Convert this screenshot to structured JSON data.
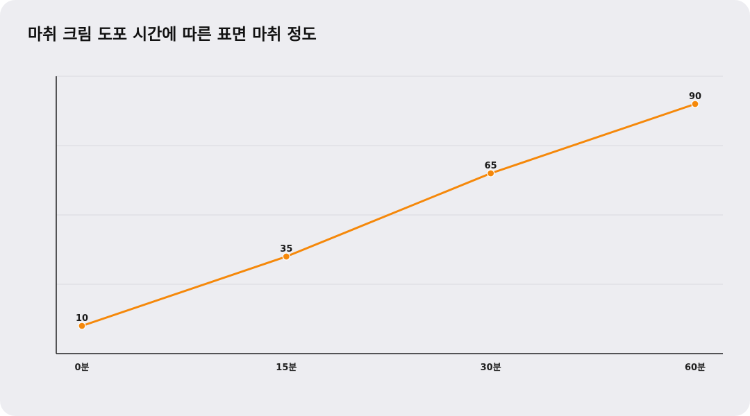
{
  "chart_data": {
    "type": "line",
    "title": "마취 크림 도포 시간에 따른 표면 마취 정도",
    "xlabel": "",
    "ylabel": "",
    "categories": [
      "0분",
      "15분",
      "30분",
      "60분"
    ],
    "series": [
      {
        "values": [
          10,
          35,
          65,
          90
        ]
      }
    ],
    "ylim": [
      0,
      100
    ],
    "grid": true,
    "legend": "none",
    "colors": {
      "line": "#f5880a",
      "grid": "#d9d9de",
      "axis": "#222222"
    }
  }
}
